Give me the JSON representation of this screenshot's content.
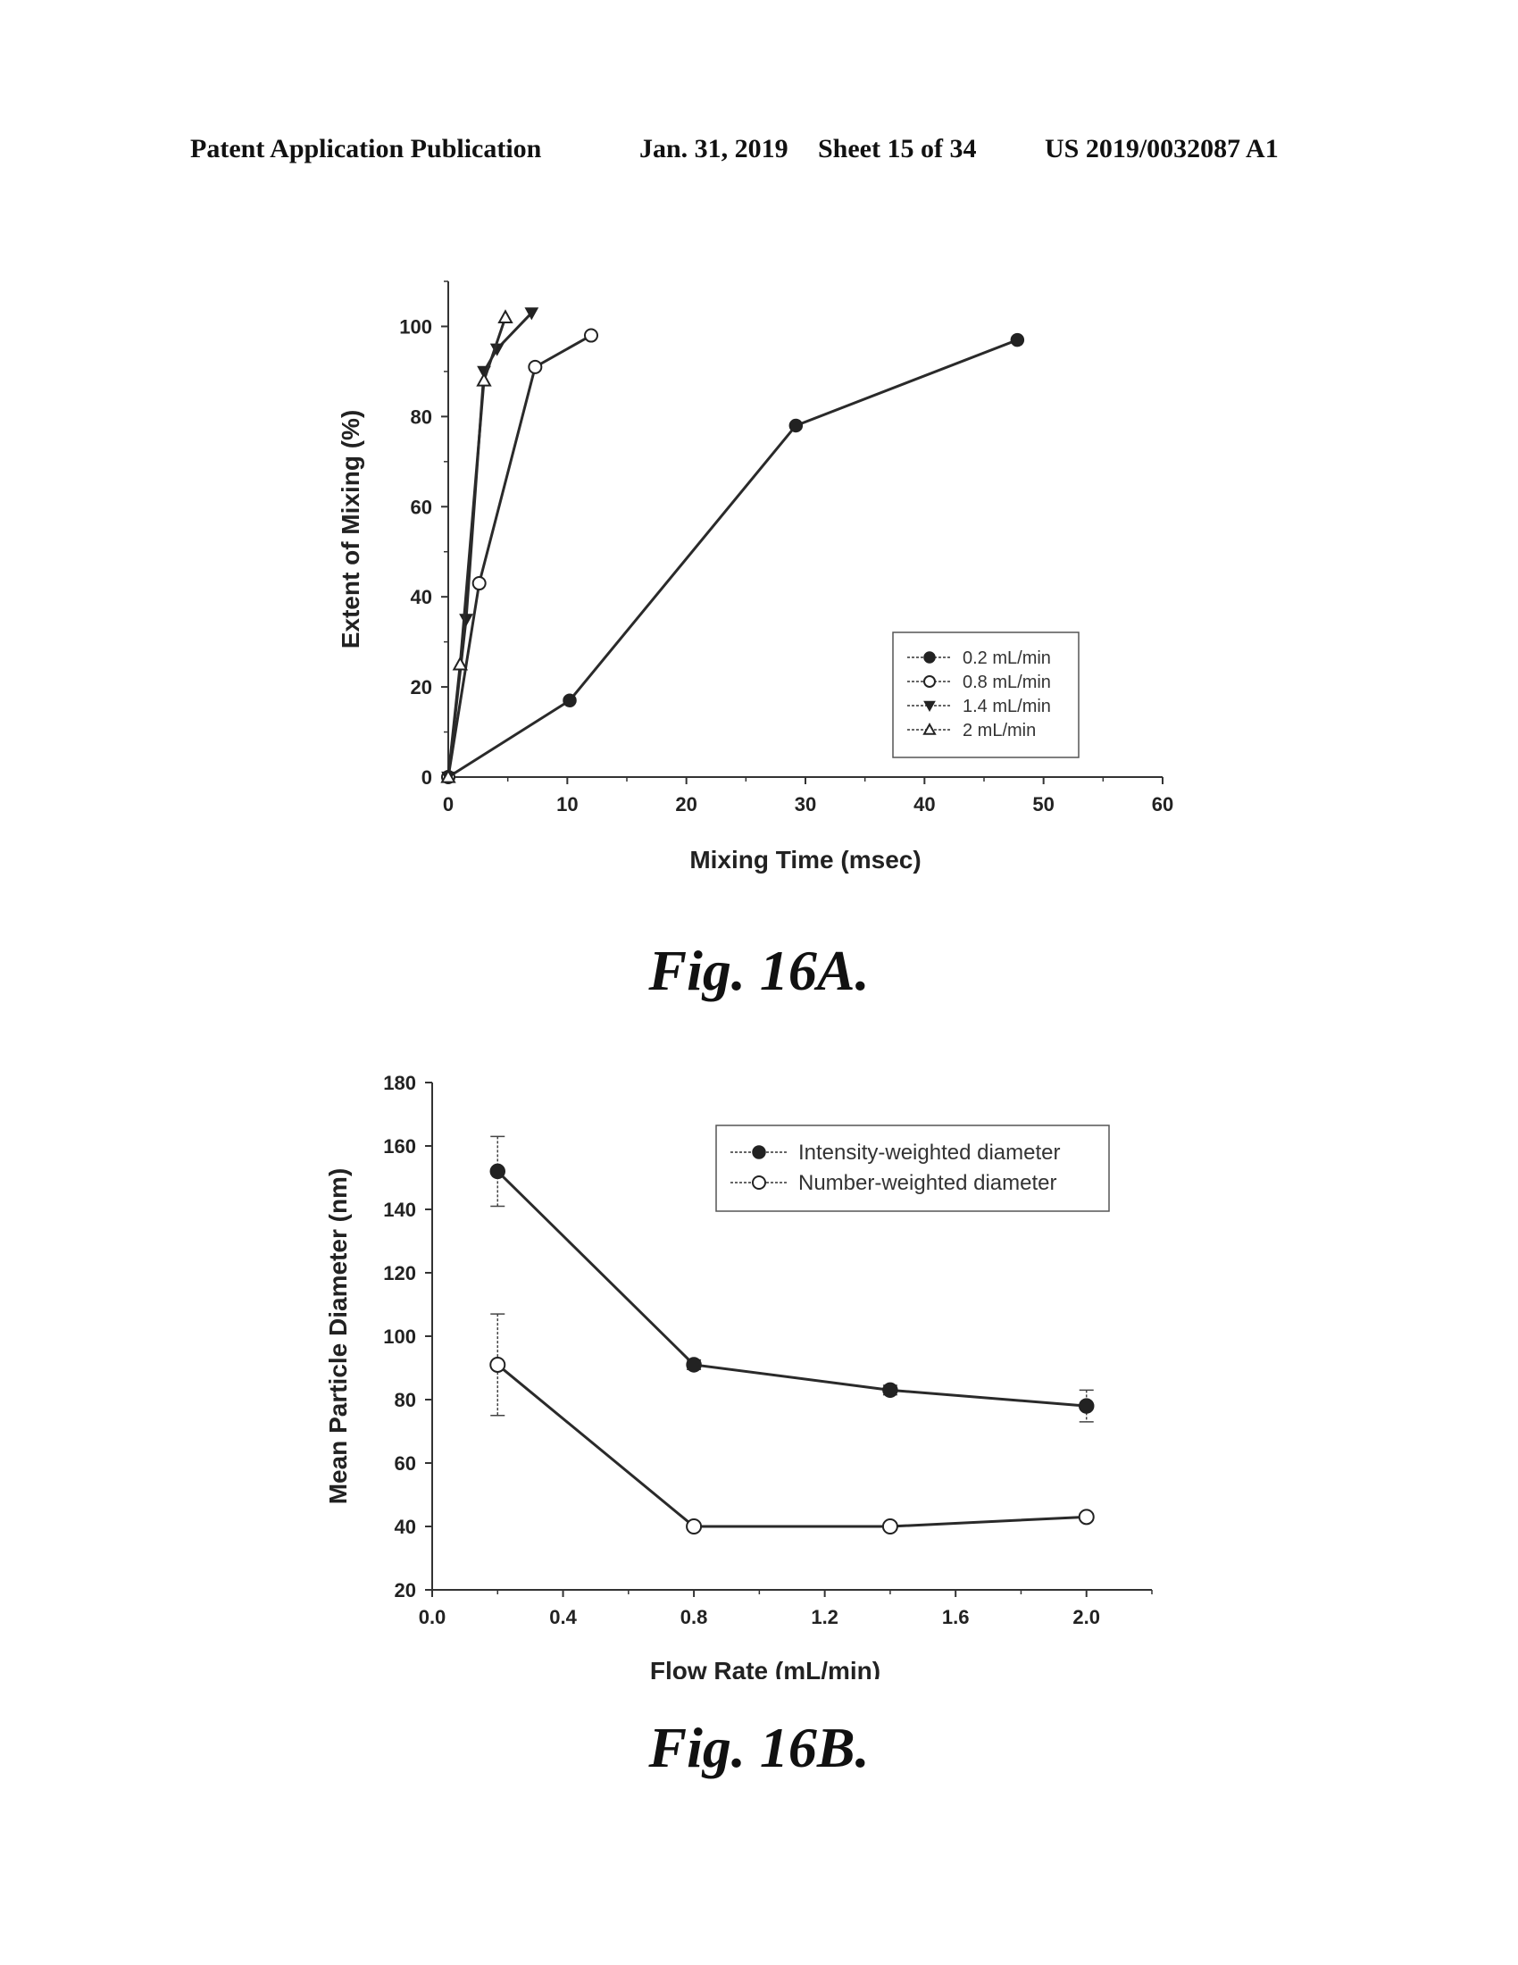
{
  "header": {
    "publication": "Patent Application Publication",
    "date": "Jan. 31, 2019",
    "sheet": "Sheet 15 of 34",
    "number": "US 2019/0032087 A1"
  },
  "captions": {
    "fig_a": "Fig. 16A.",
    "fig_b": "Fig. 16B."
  },
  "chart_data": [
    {
      "type": "line",
      "title": "",
      "xlabel": "Mixing Time (msec)",
      "ylabel": "Extent of Mixing (%)",
      "xlim": [
        0,
        60
      ],
      "ylim": [
        0,
        110
      ],
      "xticks": [
        0,
        10,
        20,
        30,
        40,
        50,
        60
      ],
      "yticks": [
        0,
        20,
        40,
        60,
        80,
        100
      ],
      "legend": "lower-right",
      "grid": false,
      "series": [
        {
          "name": "0.2 mL/min",
          "marker": "filled-circle",
          "x": [
            0,
            10.2,
            29.2,
            47.8
          ],
          "y": [
            0,
            17,
            78,
            97
          ]
        },
        {
          "name": "0.8 mL/min",
          "marker": "open-circle",
          "x": [
            0,
            2.6,
            7.3,
            12
          ],
          "y": [
            0,
            43,
            91,
            98
          ]
        },
        {
          "name": "1.4 mL/min",
          "marker": "filled-triangle-down",
          "x": [
            0,
            1.5,
            3.0,
            4.1,
            7.0
          ],
          "y": [
            0,
            35,
            90,
            95,
            103
          ]
        },
        {
          "name": "2 mL/min",
          "marker": "open-triangle-up",
          "x": [
            0,
            1.0,
            3.0,
            4.8
          ],
          "y": [
            0,
            25,
            88,
            102
          ]
        }
      ]
    },
    {
      "type": "line",
      "title": "",
      "xlabel": "Flow Rate (mL/min)",
      "ylabel": "Mean Particle Diameter (nm)",
      "xlim": [
        0.0,
        2.2
      ],
      "ylim": [
        20,
        180
      ],
      "xticks": [
        "0.0",
        "0.4",
        "0.8",
        "1.2",
        "1.6",
        "2.0"
      ],
      "yticks": [
        20,
        40,
        60,
        80,
        100,
        120,
        140,
        160,
        180
      ],
      "legend": "top-right",
      "grid": false,
      "series": [
        {
          "name": "Intensity-weighted diameter",
          "marker": "filled-circle",
          "x": [
            0.2,
            0.8,
            1.4,
            2.0
          ],
          "y": [
            152,
            91,
            83,
            78
          ],
          "err": [
            11,
            1.5,
            1.5,
            5
          ]
        },
        {
          "name": "Number-weighted diameter",
          "marker": "open-circle",
          "x": [
            0.2,
            0.8,
            1.4,
            2.0
          ],
          "y": [
            91,
            40,
            40,
            43
          ],
          "err": [
            16,
            1,
            1,
            1
          ]
        }
      ]
    }
  ]
}
